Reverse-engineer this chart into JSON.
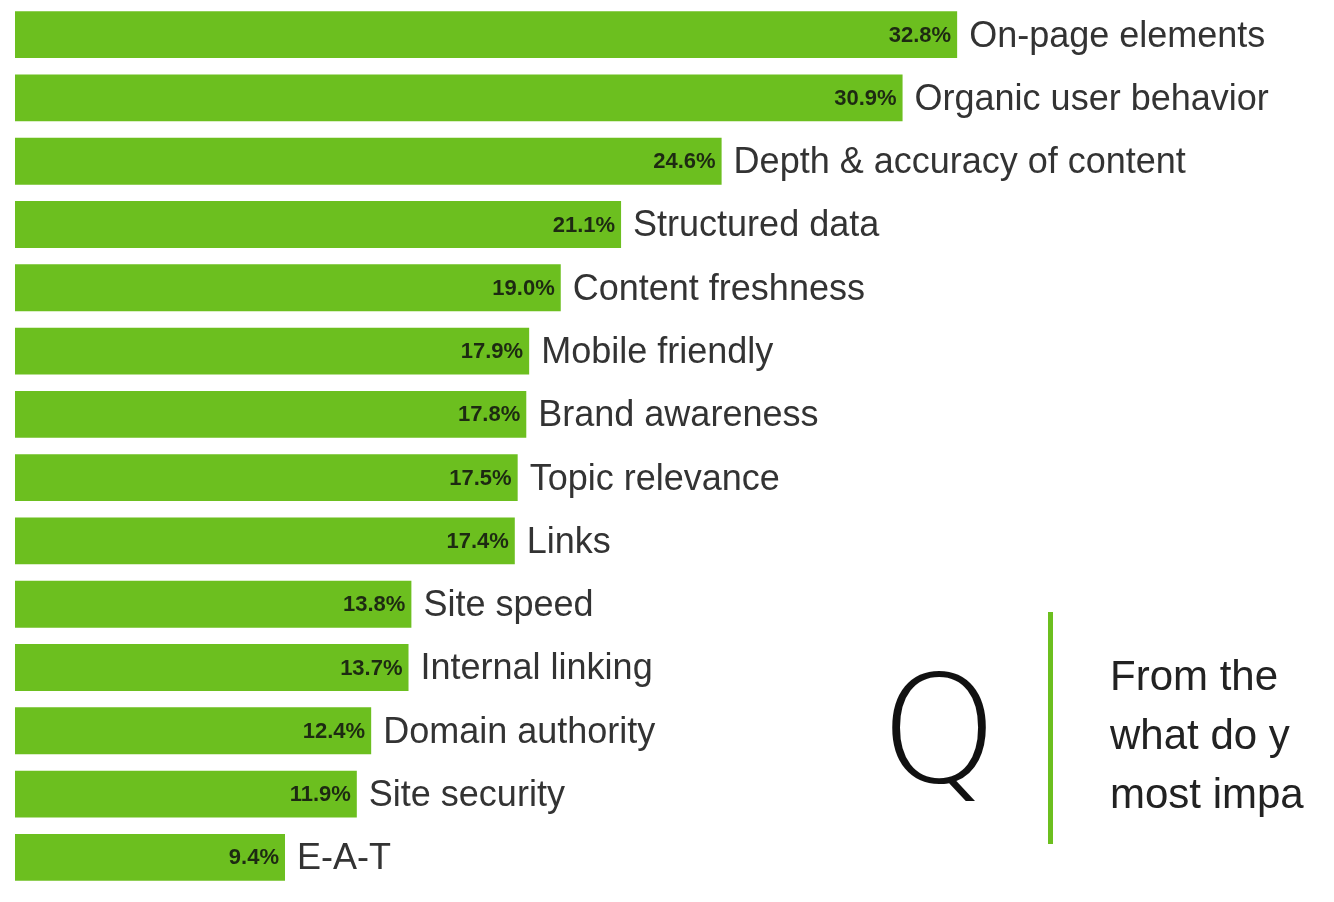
{
  "chart_data": {
    "type": "bar",
    "orientation": "horizontal",
    "categories": [
      "On-page elements",
      "Organic user behavior",
      "Depth & accuracy of content",
      "Structured data",
      "Content freshness",
      "Mobile friendly",
      "Brand awareness",
      "Topic relevance",
      "Links",
      "Site speed",
      "Internal linking",
      "Domain authority",
      "Site security",
      "E-A-T"
    ],
    "values": [
      32.8,
      30.9,
      24.6,
      21.1,
      19.0,
      17.9,
      17.8,
      17.5,
      17.4,
      13.8,
      13.7,
      12.4,
      11.9,
      9.4
    ],
    "value_labels": [
      "32.8%",
      "30.9%",
      "24.6%",
      "21.1%",
      "19.0%",
      "17.9%",
      "17.8%",
      "17.5%",
      "17.4%",
      "13.8%",
      "13.7%",
      "12.4%",
      "11.9%",
      "9.4%"
    ],
    "color": "#6cbf1f",
    "annotations": [
      "Q",
      "From the\nwhat do y\nmost impa"
    ]
  }
}
